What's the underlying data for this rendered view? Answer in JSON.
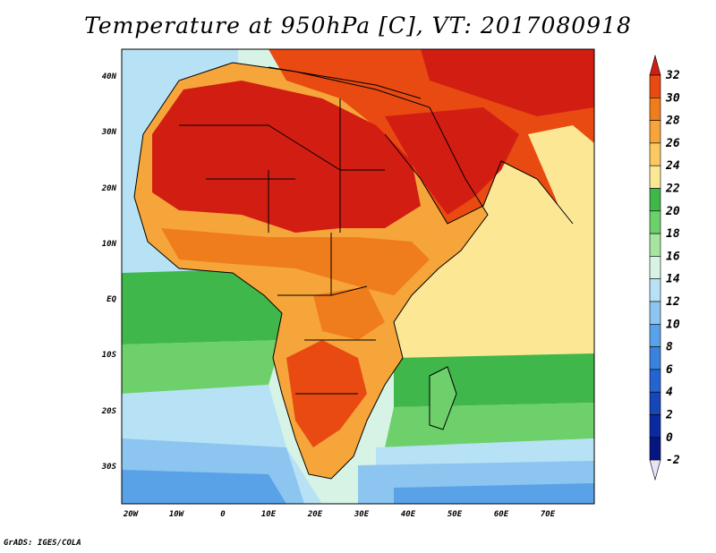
{
  "title": "Temperature at 950hPa [C], VT: 2017080918",
  "credit": "GrADS: IGES/COLA",
  "map": {
    "region": "Africa and Arabian Peninsula",
    "lon_range": [
      -23,
      80
    ],
    "lat_range": [
      -36,
      45
    ],
    "lon_ticks": [
      "20W",
      "10W",
      "0",
      "10E",
      "20E",
      "30E",
      "40E",
      "50E",
      "60E",
      "70E"
    ],
    "lat_ticks": [
      "40N",
      "30N",
      "20N",
      "10N",
      "EQ",
      "10S",
      "20S",
      "30S"
    ],
    "colorbar": {
      "labels": [
        "32",
        "30",
        "28",
        "26",
        "24",
        "22",
        "20",
        "18",
        "16",
        "14",
        "12",
        "10",
        "8",
        "6",
        "4",
        "2",
        "0",
        "-2"
      ],
      "colors": [
        "#d21e12",
        "#e94a12",
        "#f07d1c",
        "#f6a53a",
        "#fac962",
        "#fce795",
        "#3fb74a",
        "#6dd06b",
        "#a6e4a0",
        "#d6f3e6",
        "#b7e2f6",
        "#8cc5f0",
        "#5aa2e8",
        "#3a82de",
        "#2464d2",
        "#1646b8",
        "#0a2ba0",
        "#061680"
      ]
    }
  }
}
